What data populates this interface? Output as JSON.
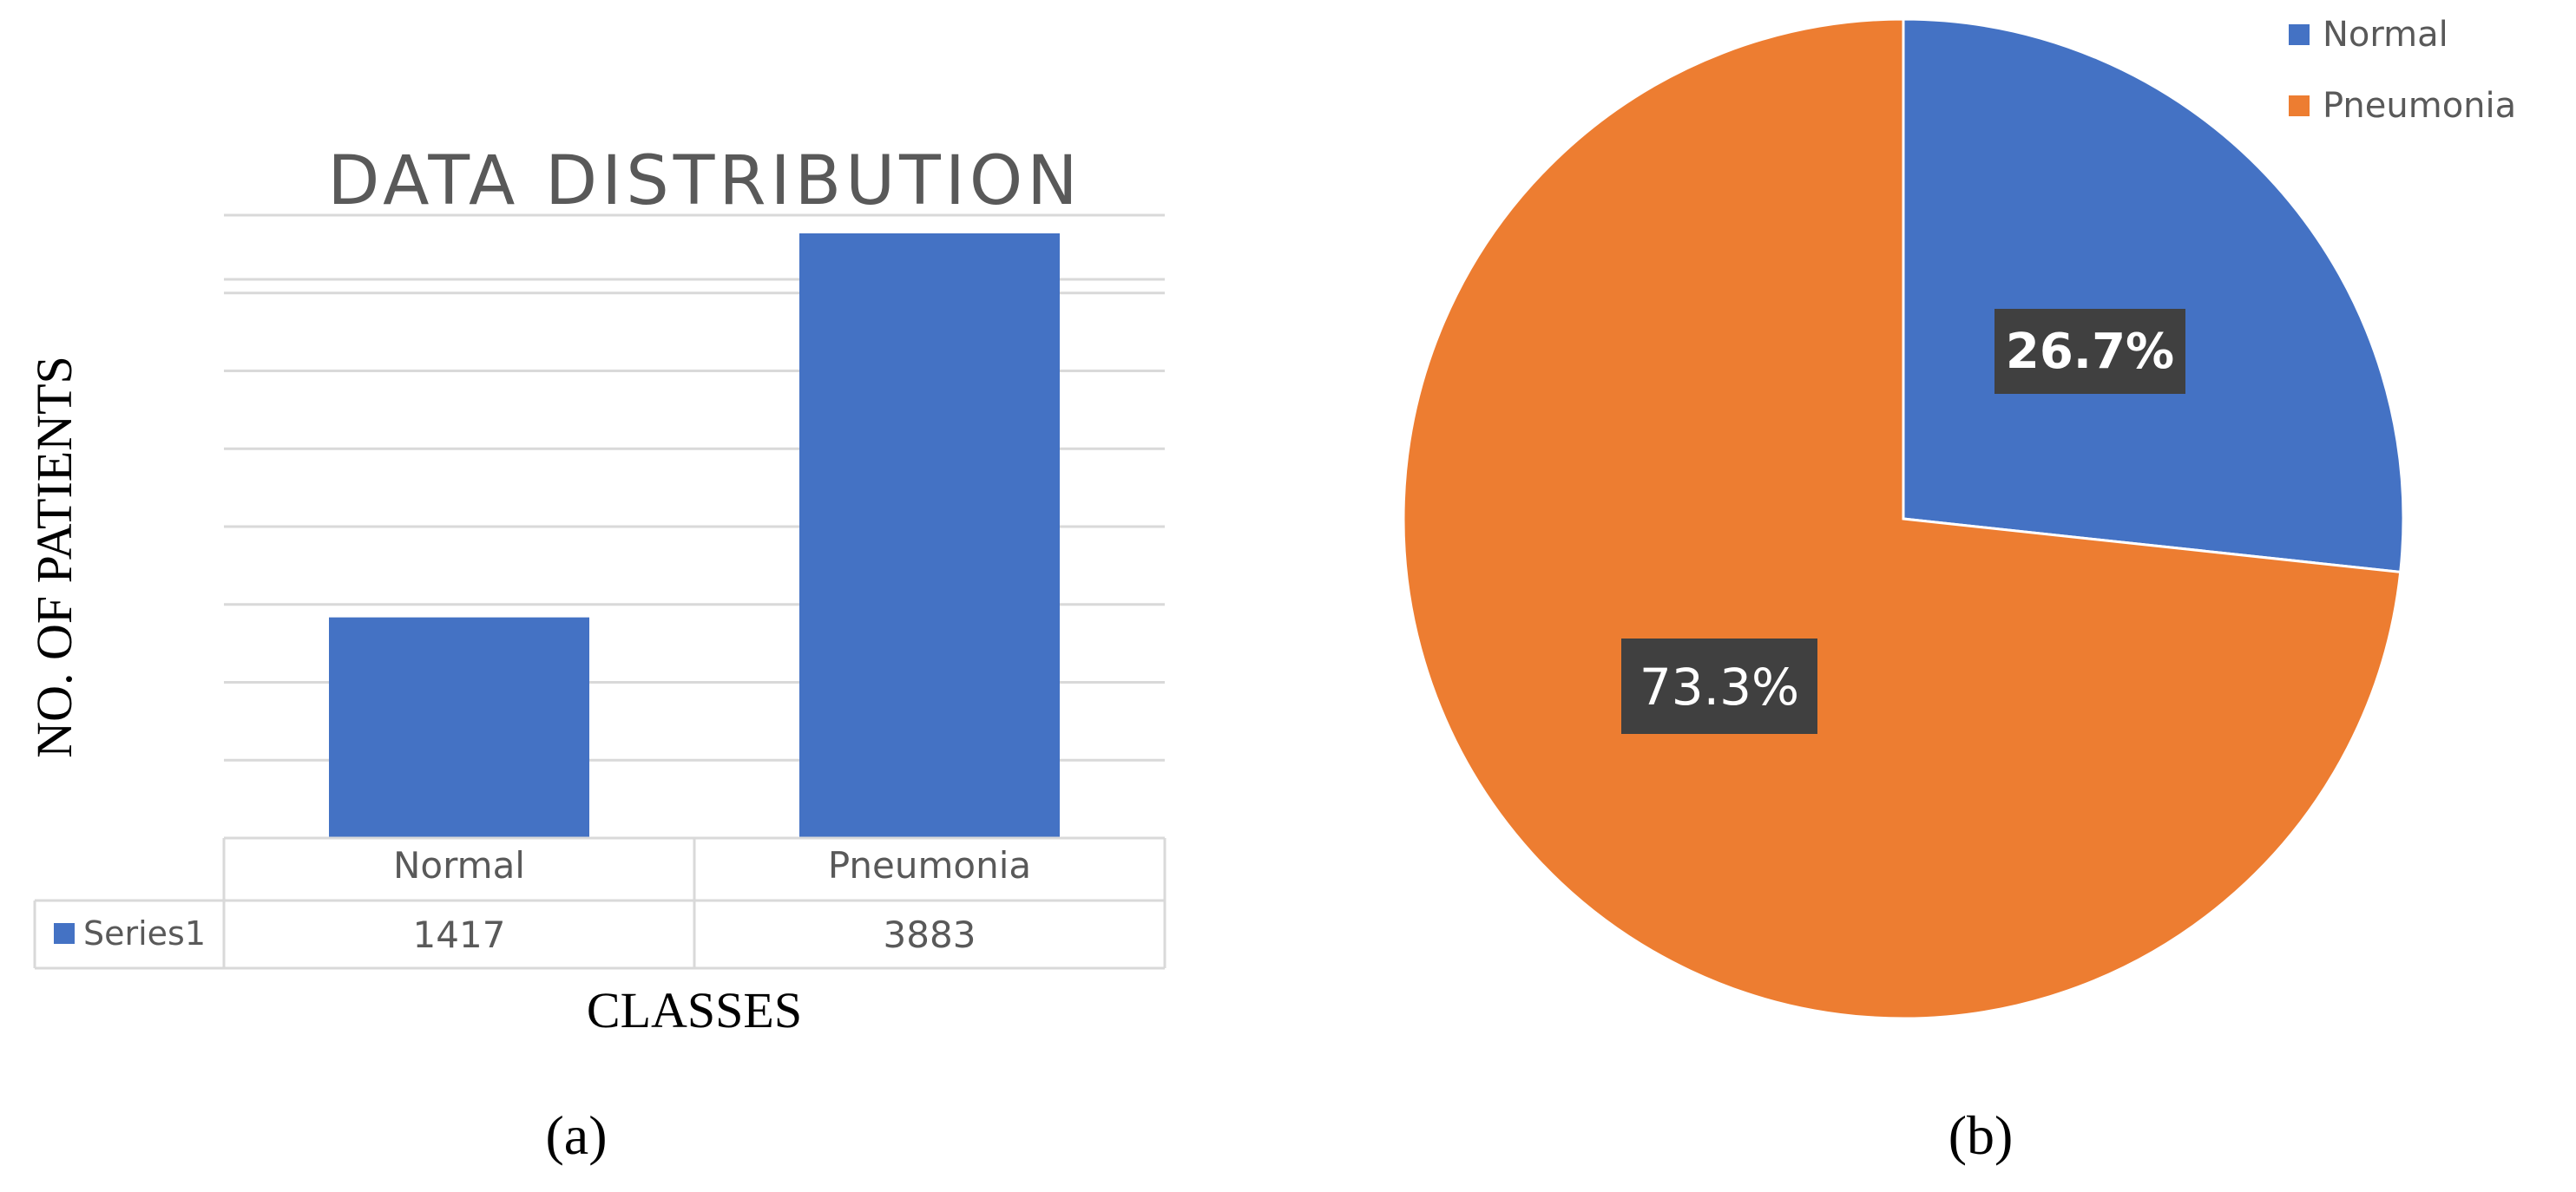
{
  "colors": {
    "normal": "#4472C4",
    "pneumonia": "#ED7D31",
    "gridline": "#D9D9D9",
    "title": "#595959",
    "label_box": "#404040"
  },
  "panels": {
    "a_label": "(a)",
    "b_label": "(b)"
  },
  "chart_data": [
    {
      "type": "bar",
      "title": "DATA DISTRIBUTION",
      "xlabel": "CLASSES",
      "ylabel": "NO. OF PATIENTS",
      "categories": [
        "Normal",
        "Pneumonia"
      ],
      "series": [
        {
          "name": "Series1",
          "values": [
            1417,
            3883
          ],
          "value_labels": [
            "1417",
            "3883"
          ]
        }
      ],
      "ylim": [
        0,
        4000
      ],
      "grid": true,
      "data_table": true
    },
    {
      "type": "pie",
      "categories": [
        "Normal",
        "Pneumonia"
      ],
      "values": [
        26.7,
        73.3
      ],
      "labels": [
        "26.7%",
        "73.3%"
      ],
      "legend": "top-right"
    }
  ]
}
